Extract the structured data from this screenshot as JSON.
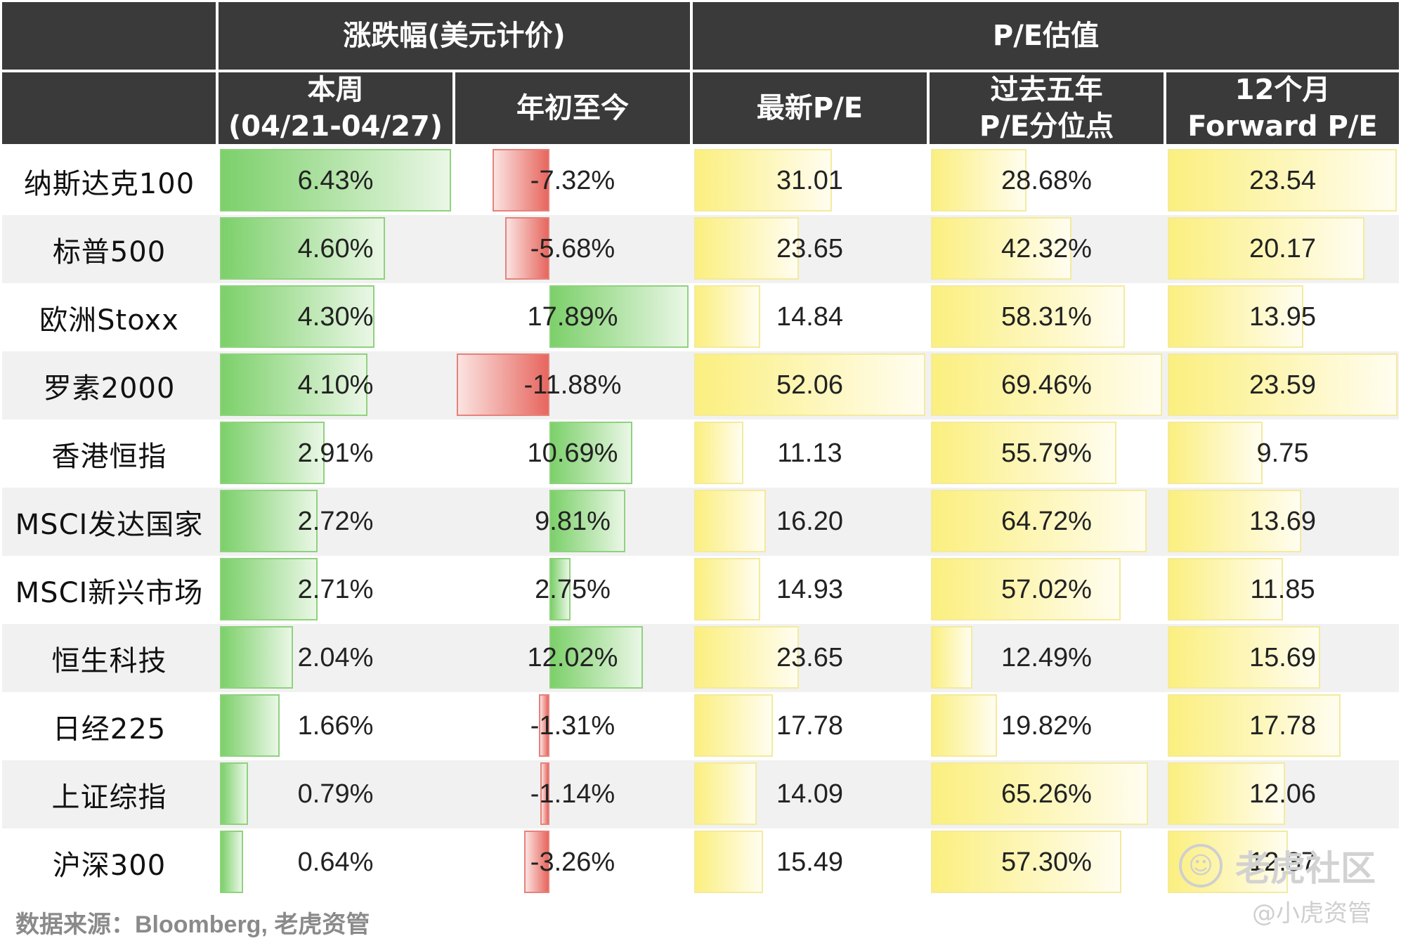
{
  "header": {
    "group_change": "涨跌幅(美元计价)",
    "group_pe": "P/E估值",
    "col_week_line1": "本周",
    "col_week_line2": "(04/21-04/27)",
    "col_ytd": "年初至今",
    "col_pe": "最新P/E",
    "col_pct_line1": "过去五年",
    "col_pct_line2": "P/E分位点",
    "col_fwd_line1": "12个月",
    "col_fwd_line2": "Forward P/E"
  },
  "chart_data": {
    "type": "table",
    "columns": [
      "本周 (04/21-04/27)",
      "年初至今",
      "最新P/E",
      "过去五年 P/E分位点",
      "12个月 Forward P/E"
    ],
    "rows": [
      {
        "name": "纳斯达克100",
        "week": 6.43,
        "ytd": -7.32,
        "pe": 31.01,
        "pct": 28.68,
        "fwd": 23.54,
        "week_label": "6.43%",
        "ytd_label": "-7.32%",
        "pe_label": "31.01",
        "pct_label": "28.68%",
        "fwd_label": "23.54"
      },
      {
        "name": "标普500",
        "week": 4.6,
        "ytd": -5.68,
        "pe": 23.65,
        "pct": 42.32,
        "fwd": 20.17,
        "week_label": "4.60%",
        "ytd_label": "-5.68%",
        "pe_label": "23.65",
        "pct_label": "42.32%",
        "fwd_label": "20.17"
      },
      {
        "name": "欧洲Stoxx",
        "week": 4.3,
        "ytd": 17.89,
        "pe": 14.84,
        "pct": 58.31,
        "fwd": 13.95,
        "week_label": "4.30%",
        "ytd_label": "17.89%",
        "pe_label": "14.84",
        "pct_label": "58.31%",
        "fwd_label": "13.95"
      },
      {
        "name": "罗素2000",
        "week": 4.1,
        "ytd": -11.88,
        "pe": 52.06,
        "pct": 69.46,
        "fwd": 23.59,
        "week_label": "4.10%",
        "ytd_label": "-11.88%",
        "pe_label": "52.06",
        "pct_label": "69.46%",
        "fwd_label": "23.59"
      },
      {
        "name": "香港恒指",
        "week": 2.91,
        "ytd": 10.69,
        "pe": 11.13,
        "pct": 55.79,
        "fwd": 9.75,
        "week_label": "2.91%",
        "ytd_label": "10.69%",
        "pe_label": "11.13",
        "pct_label": "55.79%",
        "fwd_label": "9.75"
      },
      {
        "name": "MSCI发达国家",
        "week": 2.72,
        "ytd": 9.81,
        "pe": 16.2,
        "pct": 64.72,
        "fwd": 13.69,
        "week_label": "2.72%",
        "ytd_label": "9.81%",
        "pe_label": "16.20",
        "pct_label": "64.72%",
        "fwd_label": "13.69"
      },
      {
        "name": "MSCI新兴市场",
        "week": 2.71,
        "ytd": 2.75,
        "pe": 14.93,
        "pct": 57.02,
        "fwd": 11.85,
        "week_label": "2.71%",
        "ytd_label": "2.75%",
        "pe_label": "14.93",
        "pct_label": "57.02%",
        "fwd_label": "11.85"
      },
      {
        "name": "恒生科技",
        "week": 2.04,
        "ytd": 12.02,
        "pe": 23.65,
        "pct": 12.49,
        "fwd": 15.69,
        "week_label": "2.04%",
        "ytd_label": "12.02%",
        "pe_label": "23.65",
        "pct_label": "12.49%",
        "fwd_label": "15.69"
      },
      {
        "name": "日经225",
        "week": 1.66,
        "ytd": -1.31,
        "pe": 17.78,
        "pct": 19.82,
        "fwd": 17.78,
        "week_label": "1.66%",
        "ytd_label": "-1.31%",
        "pe_label": "17.78",
        "pct_label": "19.82%",
        "fwd_label": "17.78"
      },
      {
        "name": "上证综指",
        "week": 0.79,
        "ytd": -1.14,
        "pe": 14.09,
        "pct": 65.26,
        "fwd": 12.06,
        "week_label": "0.79%",
        "ytd_label": "-1.14%",
        "pe_label": "14.09",
        "pct_label": "65.26%",
        "fwd_label": "12.06"
      },
      {
        "name": "沪深300",
        "week": 0.64,
        "ytd": -3.26,
        "pe": 15.49,
        "pct": 57.3,
        "fwd": 12.37,
        "week_label": "0.64%",
        "ytd_label": "-3.26%",
        "pe_label": "15.49",
        "pct_label": "57.30%",
        "fwd_label": "12.37"
      }
    ]
  },
  "footer": {
    "source": "数据来源：Bloomberg, 老虎资管",
    "watermark_main": "老虎社区",
    "watermark_sub": "@小虎资管",
    "watermark_logo_icon": "tiger-logo-icon"
  },
  "colors": {
    "header_bg": "#3a3a3a",
    "positive": "#7cd06a",
    "negative": "#e7675f",
    "pe_bar": "#fbef7f"
  }
}
